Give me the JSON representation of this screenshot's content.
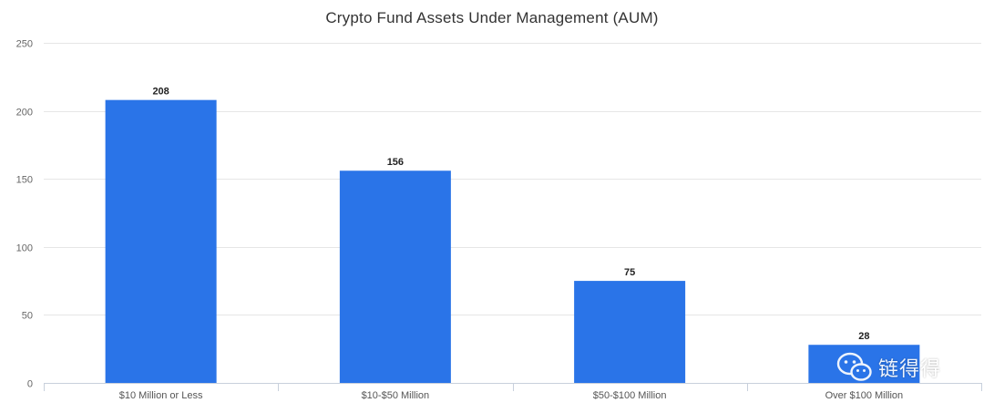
{
  "chart_data": {
    "type": "bar",
    "title": "Crypto Fund Assets Under Management (AUM)",
    "categories": [
      "$10 Million or Less",
      "$10-$50 Million",
      "$50-$100 Million",
      "Over $100 Million"
    ],
    "values": [
      208,
      156,
      75,
      28
    ],
    "data_labels": [
      "208",
      "156",
      "75",
      "28"
    ],
    "ylim": [
      0,
      250
    ],
    "yticks": [
      0,
      50,
      100,
      150,
      200,
      250
    ],
    "xlabel": "",
    "ylabel": "",
    "grid": true,
    "legend": "none",
    "bar_color": "#2a74e8"
  },
  "watermark": {
    "name": "链得得",
    "icon": "wechat-icon"
  }
}
